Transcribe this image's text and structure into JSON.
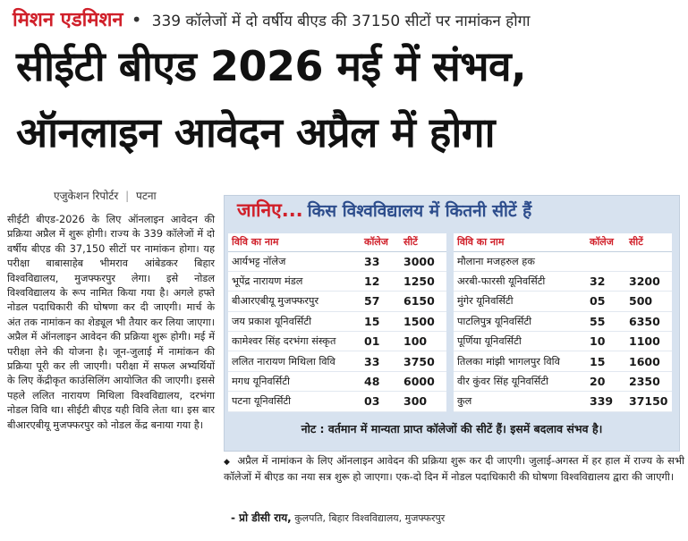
{
  "header": {
    "kicker": "मिशन एडमिशन",
    "bullet": "•",
    "subhead": "339 कॉलेजों में दो वर्षीय बीएड की 37150 सीटों पर नामांकन होगा"
  },
  "headline": {
    "line1": "सीईटी बीएड 2026 मई में संभव,",
    "line2": "ऑनलाइन आवेदन अप्रैल में होगा"
  },
  "byline": {
    "author": "एजुकेशन रिपोर्टर",
    "separator": "|",
    "place": "पटना"
  },
  "article": {
    "body": "सीईटी बीएड-2026 के लिए ऑनलाइन आवेदन की प्रक्रिया अप्रैल में शुरू होगी। राज्य के 339 कॉलेजों में दो वर्षीय बीएड की 37,150 सीटों पर नामांकन होगा। यह परीक्षा बाबासाहेब भीमराव आंबेडकर बिहार विश्वविद्यालय, मुजफ्फरपुर लेगा। इसे नोडल विश्वविद्यालय के रूप नामित किया गया है। अगले हफ्ते नोडल पदाधिकारी की घोषणा कर दी जाएगी। मार्च के अंत तक नामांकन का शेड्यूल भी तैयार कर लिया जाएगा। अप्रैल में ऑनलाइन आवेदन की प्रक्रिया शुरू होगी। मई में परीक्षा लेने की योजना है। जून-जुलाई में नामांकन की प्रक्रिया पूरी कर ली जाएगी। परीक्षा में सफल अभ्यर्थियों के लिए केंद्रीकृत काउंसिलिंग आयोजित की जाएगी। इससे पहले ललित नारायण मिथिला विश्वविद्यालय, दरभंगा नोडल विवि था। सीईटी बीएड यही विवि लेता था। इस बार बीआरएबीयू मुजफ्फरपुर को नोडल केंद्र बनाया गया है।"
  },
  "panel": {
    "title_lead": "जानिए...",
    "title_rest": "किस विश्वविद्यालय में कितनी सीटें हैं",
    "columns": {
      "name": "विवि का नाम",
      "colleges": "कॉलेज",
      "seats": "सीटें"
    },
    "left_rows": [
      {
        "name": "आर्यभट्ट नॉलेज",
        "colleges": "33",
        "seats": "3000"
      },
      {
        "name": "भूपेंद्र नारायण मंडल",
        "colleges": "12",
        "seats": "1250"
      },
      {
        "name": "बीआरएबीयू मुजफ्फरपुर",
        "colleges": "57",
        "seats": "6150"
      },
      {
        "name": "जय प्रकाश यूनिवर्सिटी",
        "colleges": "15",
        "seats": "1500"
      },
      {
        "name": "कामेश्वर सिंह दरभंगा संस्कृत",
        "colleges": "01",
        "seats": "100"
      },
      {
        "name": "ललित नारायण मिथिला विवि",
        "colleges": "33",
        "seats": "3750"
      },
      {
        "name": "मगध यूनिवर्सिटी",
        "colleges": "48",
        "seats": "6000"
      },
      {
        "name": "पटना यूनिवर्सिटी",
        "colleges": "03",
        "seats": "300"
      }
    ],
    "right_rows": [
      {
        "name": "मौलाना मजहरुल हक",
        "colleges": "",
        "seats": ""
      },
      {
        "name": "अरबी-फारसी यूनिवर्सिटी",
        "colleges": "32",
        "seats": "3200"
      },
      {
        "name": "मुंगेर यूनिवर्सिटी",
        "colleges": "05",
        "seats": "500"
      },
      {
        "name": "पाटलिपुत्र यूनिवर्सिटी",
        "colleges": "55",
        "seats": "6350"
      },
      {
        "name": "पूर्णिया यूनिवर्सिटी",
        "colleges": "10",
        "seats": "1100"
      },
      {
        "name": "तिलका मांझी भागलपुर विवि",
        "colleges": "15",
        "seats": "1600"
      },
      {
        "name": "वीर कुंवर सिंह यूनिवर्सिटी",
        "colleges": "20",
        "seats": "2350"
      },
      {
        "name": "कुल",
        "colleges": "339",
        "seats": "37150"
      }
    ],
    "note": "नोट : वर्तमान में मान्यता प्राप्त कॉलेजों की सीटें हैं। इसमें बदलाव संभव है।"
  },
  "quote": {
    "mark": "◆",
    "text": "अप्रैल में नामांकन के लिए ऑनलाइन आवेदन की प्रक्रिया शुरू कर दी जाएगी। जुलाई-अगस्त में हर हाल में राज्य के सभी कॉलेजों में बीएड का नया सत्र शुरू हो जाएगा। एक-दो दिन में नोडल पदाधिकारी की घोषणा विश्वविद्यालय द्वारा की जाएगी।",
    "author_name": "- प्रो डीसी राय,",
    "author_title": "कुलपति, बिहार विश्वविद्यालय, मुजफ्फरपुर"
  }
}
